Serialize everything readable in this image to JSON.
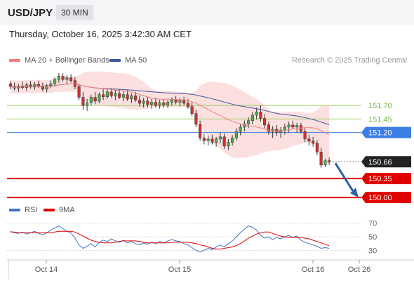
{
  "header": {
    "symbol": "USD/JPY",
    "timeframe": "30 MIN",
    "datetime": "Thursday, October 16, 2025 3:42:30 AM CET"
  },
  "legend": {
    "ma20": "MA 20 + Bollinger Bands",
    "ma50": "MA 50",
    "ma20_color": "#f08080",
    "ma50_color": "#3b5998",
    "credit": "Research © 2025 Trading Central"
  },
  "rsi_legend": {
    "rsi": "RSI",
    "ma9": "9MA",
    "rsi_color": "#4472c4",
    "ma9_color": "#e00000"
  },
  "chart_data": [
    {
      "type": "candlestick",
      "title": "USD/JPY",
      "price_range": [
        149.95,
        152.35
      ],
      "ylim": [
        149.95,
        152.35
      ],
      "levels": [
        {
          "label": "151.70",
          "value": 151.7,
          "color": "#9ccc65"
        },
        {
          "label": "151.45",
          "value": 151.45,
          "color": "#9ccc65"
        },
        {
          "label": "151.20",
          "value": 151.2,
          "color": "#3d7ee6"
        },
        {
          "label": "150.66",
          "value": 150.66,
          "color": "#222222"
        },
        {
          "label": "150.35",
          "value": 150.35,
          "color": "#e00000"
        },
        {
          "label": "150.00",
          "value": 150.0,
          "color": "#e00000"
        }
      ],
      "current_price": 150.66,
      "x_tick_labels": [
        "Oct 14",
        "Oct 15",
        "Oct 16",
        "Oct 26"
      ],
      "candles": [
        [
          152.1,
          152.15,
          152.0,
          152.05
        ],
        [
          152.05,
          152.12,
          151.98,
          152.02
        ],
        [
          152.02,
          152.1,
          151.95,
          152.06
        ],
        [
          152.06,
          152.14,
          152.0,
          152.03
        ],
        [
          152.03,
          152.12,
          151.97,
          152.08
        ],
        [
          152.08,
          152.15,
          152.01,
          152.04
        ],
        [
          152.04,
          152.13,
          151.99,
          152.09
        ],
        [
          152.09,
          152.16,
          152.02,
          152.06
        ],
        [
          152.06,
          152.12,
          151.96,
          152.0
        ],
        [
          152.0,
          152.1,
          151.94,
          152.07
        ],
        [
          152.07,
          152.16,
          152.02,
          152.1
        ],
        [
          152.1,
          152.22,
          152.05,
          152.18
        ],
        [
          152.18,
          152.3,
          152.12,
          152.24
        ],
        [
          152.24,
          152.3,
          152.14,
          152.18
        ],
        [
          152.18,
          152.26,
          152.1,
          152.21
        ],
        [
          152.21,
          152.28,
          152.12,
          152.16
        ],
        [
          152.16,
          152.22,
          152.0,
          152.05
        ],
        [
          152.05,
          152.1,
          151.8,
          151.85
        ],
        [
          151.85,
          151.95,
          151.62,
          151.7
        ],
        [
          151.7,
          151.82,
          151.6,
          151.75
        ],
        [
          151.75,
          151.9,
          151.7,
          151.85
        ],
        [
          151.85,
          151.95,
          151.72,
          151.78
        ],
        [
          151.78,
          151.94,
          151.74,
          151.9
        ],
        [
          151.9,
          152.0,
          151.8,
          151.86
        ],
        [
          151.86,
          152.0,
          151.82,
          151.95
        ],
        [
          151.95,
          152.02,
          151.84,
          151.88
        ],
        [
          151.88,
          151.98,
          151.8,
          151.92
        ],
        [
          151.92,
          152.0,
          151.82,
          151.85
        ],
        [
          151.85,
          151.96,
          151.78,
          151.9
        ],
        [
          151.9,
          151.98,
          151.78,
          151.82
        ],
        [
          151.82,
          151.92,
          151.74,
          151.88
        ],
        [
          151.88,
          151.95,
          151.76,
          151.8
        ],
        [
          151.8,
          151.88,
          151.68,
          151.74
        ],
        [
          151.74,
          151.84,
          151.66,
          151.78
        ],
        [
          151.78,
          151.86,
          151.66,
          151.72
        ],
        [
          151.72,
          151.82,
          151.64,
          151.76
        ],
        [
          151.76,
          151.84,
          151.66,
          151.7
        ],
        [
          151.7,
          151.8,
          151.64,
          151.75
        ],
        [
          151.75,
          151.82,
          151.66,
          151.71
        ],
        [
          151.71,
          151.8,
          151.65,
          151.76
        ],
        [
          151.76,
          151.85,
          151.7,
          151.8
        ],
        [
          151.8,
          151.88,
          151.72,
          151.76
        ],
        [
          151.76,
          151.84,
          151.68,
          151.79
        ],
        [
          151.79,
          151.86,
          151.7,
          151.74
        ],
        [
          151.74,
          151.82,
          151.64,
          151.68
        ],
        [
          151.68,
          151.76,
          151.5,
          151.55
        ],
        [
          151.55,
          151.62,
          151.3,
          151.35
        ],
        [
          151.35,
          151.42,
          151.05,
          151.1
        ],
        [
          151.1,
          151.18,
          150.98,
          151.05
        ],
        [
          151.05,
          151.14,
          150.96,
          151.08
        ],
        [
          151.08,
          151.16,
          150.98,
          151.02
        ],
        [
          151.02,
          151.12,
          150.94,
          151.08
        ],
        [
          151.08,
          151.2,
          151.0,
          151.12
        ],
        [
          151.12,
          151.18,
          150.9,
          150.95
        ],
        [
          150.95,
          151.08,
          150.88,
          151.02
        ],
        [
          151.02,
          151.15,
          150.96,
          151.1
        ],
        [
          151.1,
          151.28,
          151.05,
          151.22
        ],
        [
          151.22,
          151.35,
          151.15,
          151.3
        ],
        [
          151.3,
          151.42,
          151.22,
          151.36
        ],
        [
          151.36,
          151.48,
          151.28,
          151.42
        ],
        [
          151.42,
          151.58,
          151.35,
          151.52
        ],
        [
          151.52,
          151.66,
          151.44,
          151.58
        ],
        [
          151.58,
          151.7,
          151.4,
          151.46
        ],
        [
          151.46,
          151.54,
          151.28,
          151.34
        ],
        [
          151.34,
          151.4,
          151.16,
          151.22
        ],
        [
          151.22,
          151.32,
          151.1,
          151.26
        ],
        [
          151.26,
          151.34,
          151.14,
          151.2
        ],
        [
          151.2,
          151.3,
          151.1,
          151.24
        ],
        [
          151.24,
          151.36,
          151.16,
          151.3
        ],
        [
          151.3,
          151.4,
          151.2,
          151.34
        ],
        [
          151.34,
          151.42,
          151.26,
          151.3
        ],
        [
          151.3,
          151.38,
          151.2,
          151.33
        ],
        [
          151.33,
          151.38,
          151.18,
          151.22
        ],
        [
          151.22,
          151.28,
          151.02,
          151.08
        ],
        [
          151.08,
          151.16,
          150.96,
          151.04
        ],
        [
          151.04,
          151.12,
          150.94,
          151.0
        ],
        [
          151.0,
          151.06,
          150.78,
          150.84
        ],
        [
          150.84,
          150.92,
          150.55,
          150.6
        ],
        [
          150.6,
          150.72,
          150.56,
          150.68
        ],
        [
          150.68,
          150.74,
          150.6,
          150.66
        ]
      ]
    },
    {
      "type": "line",
      "title": "RSI",
      "ylim": [
        18,
        78
      ],
      "y_tick_labels": [
        "70",
        "50",
        "30"
      ],
      "series": [
        {
          "name": "RSI",
          "values": [
            58,
            56,
            55,
            57,
            54,
            56,
            58,
            55,
            53,
            56,
            60,
            63,
            66,
            62,
            58,
            56,
            48,
            38,
            33,
            36,
            40,
            35,
            42,
            45,
            43,
            47,
            44,
            42,
            45,
            41,
            43,
            40,
            38,
            41,
            39,
            42,
            40,
            43,
            41,
            44,
            46,
            44,
            43,
            40,
            38,
            34,
            30,
            28,
            30,
            33,
            31,
            35,
            38,
            35,
            40,
            44,
            50,
            56,
            61,
            66,
            64,
            60,
            52,
            48,
            50,
            46,
            49,
            47,
            50,
            52,
            49,
            51,
            45,
            42,
            40,
            38,
            36,
            33,
            34,
            33
          ]
        },
        {
          "name": "9MA",
          "values": [
            57,
            57,
            56,
            56,
            56,
            56,
            56,
            56,
            56,
            56,
            56,
            57,
            58,
            58,
            58,
            58,
            57,
            54,
            51,
            48,
            45,
            43,
            42,
            41,
            41,
            41,
            42,
            43,
            44,
            44,
            44,
            44,
            43,
            42,
            41,
            41,
            41,
            41,
            41,
            41,
            42,
            42,
            42,
            42,
            42,
            41,
            40,
            38,
            37,
            35,
            33,
            32,
            32,
            33,
            34,
            35,
            37,
            40,
            44,
            48,
            51,
            54,
            56,
            57,
            57,
            55,
            53,
            51,
            50,
            49,
            49,
            49,
            49,
            48,
            47,
            45,
            43,
            41,
            39,
            37
          ]
        }
      ]
    }
  ]
}
